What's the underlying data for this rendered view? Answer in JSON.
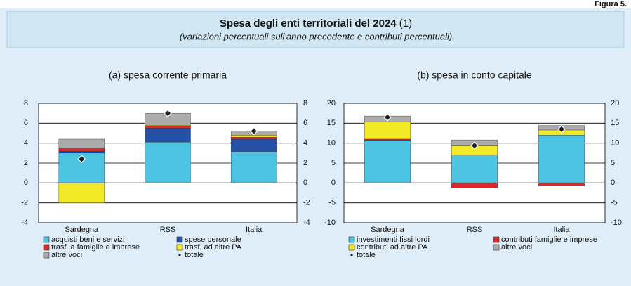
{
  "figure_label": "Figura 5.",
  "title": "Spesa degli enti territoriali del 2024",
  "title_note": "(1)",
  "subtitle": "(variazioni percentuali sull'anno precedente e contributi percentuali)",
  "chart_data": [
    {
      "type": "bar",
      "stacked": true,
      "title": "(a) spesa corrente primaria",
      "categories": [
        "Sardegna",
        "RSS",
        "Italia"
      ],
      "series": [
        {
          "name": "acquisti beni e servizi",
          "color": "#4cc4e2",
          "values": [
            3.0,
            4.1,
            3.1
          ]
        },
        {
          "name": "spese personale",
          "color": "#2650a6",
          "values": [
            0.2,
            1.4,
            1.3
          ]
        },
        {
          "name": "trasf. a famiglie e imprese",
          "color": "#e0262b",
          "values": [
            0.3,
            0.2,
            0.2
          ]
        },
        {
          "name": "trasf. ad altre PA",
          "color": "#f2ea26",
          "values": [
            -2.0,
            0.1,
            0.2
          ]
        },
        {
          "name": "altre voci",
          "color": "#acacac",
          "values": [
            0.9,
            1.2,
            0.4
          ]
        }
      ],
      "totals": {
        "name": "totale",
        "values": [
          2.4,
          7.0,
          5.2
        ]
      },
      "ylim": [
        -4,
        8
      ],
      "yticks": [
        -4,
        -2,
        0,
        2,
        4,
        6,
        8
      ],
      "y2lim": [
        -4,
        8
      ],
      "y2ticks": [
        -4,
        -2,
        0,
        2,
        4,
        6,
        8
      ],
      "grid": true
    },
    {
      "type": "bar",
      "stacked": true,
      "title": "(b) spesa in conto capitale",
      "categories": [
        "Sardegna",
        "RSS",
        "Italia"
      ],
      "series": [
        {
          "name": "investimenti fissi lordi",
          "color": "#4cc4e2",
          "values": [
            10.7,
            7.0,
            12.0
          ]
        },
        {
          "name": "contributi famiglie e imprese",
          "color": "#e0262b",
          "values": [
            0.3,
            -1.2,
            -0.7
          ]
        },
        {
          "name": "contributi ad altre PA",
          "color": "#f2ea26",
          "values": [
            4.3,
            2.3,
            1.3
          ]
        },
        {
          "name": "altre voci",
          "color": "#acacac",
          "values": [
            1.5,
            1.5,
            1.1
          ]
        }
      ],
      "totals": {
        "name": "totale",
        "values": [
          16.5,
          9.4,
          13.5
        ]
      },
      "ylim": [
        -10,
        20
      ],
      "yticks": [
        -10,
        -5,
        0,
        5,
        10,
        15,
        20
      ],
      "y2lim": [
        -10,
        20
      ],
      "y2ticks": [
        -10,
        -5,
        0,
        5,
        10,
        15,
        20
      ],
      "grid": true
    }
  ]
}
